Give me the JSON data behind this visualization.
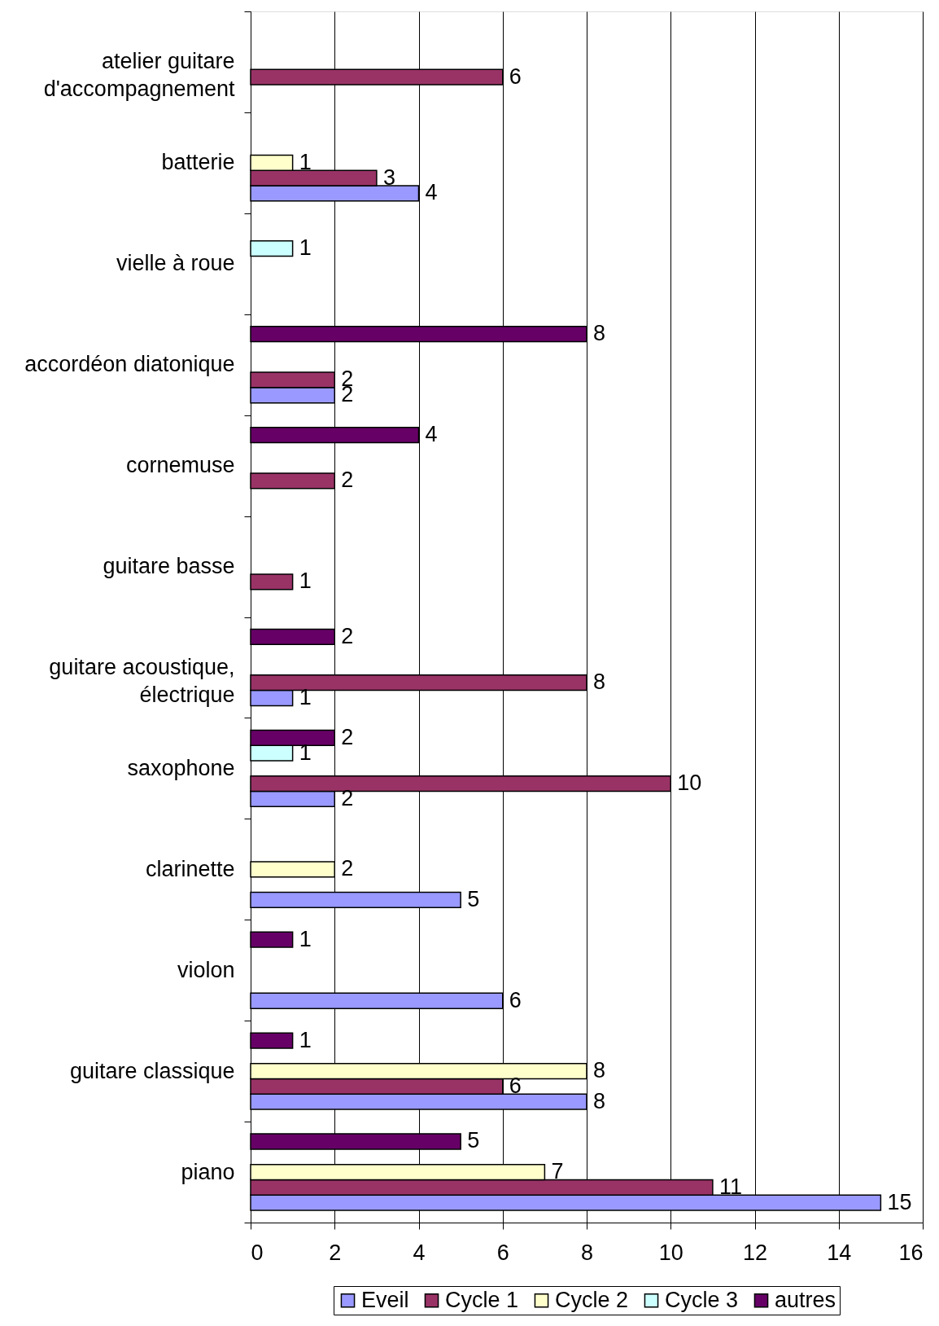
{
  "chart_data": {
    "type": "bar",
    "orientation": "horizontal",
    "categories": [
      "atelier guitare d'accompagnement",
      "batterie",
      "vielle à roue",
      "accordéon diatonique",
      "cornemuse",
      "guitare basse",
      "guitare acoustique, électrique",
      "saxophone",
      "clarinette",
      "violon",
      "guitare classique",
      "piano"
    ],
    "series": [
      {
        "name": "Eveil",
        "color": "#9999ff",
        "values": [
          null,
          4,
          null,
          2,
          null,
          null,
          1,
          2,
          5,
          6,
          8,
          15
        ]
      },
      {
        "name": "Cycle 1",
        "color": "#993366",
        "values": [
          6,
          3,
          null,
          2,
          2,
          1,
          8,
          10,
          null,
          null,
          6,
          11
        ]
      },
      {
        "name": "Cycle 2",
        "color": "#ffffcc",
        "values": [
          null,
          1,
          null,
          null,
          null,
          null,
          null,
          null,
          2,
          null,
          8,
          7
        ]
      },
      {
        "name": "Cycle 3",
        "color": "#ccffff",
        "values": [
          null,
          null,
          1,
          null,
          null,
          null,
          null,
          1,
          null,
          null,
          null,
          null
        ]
      },
      {
        "name": "autres",
        "color": "#660066",
        "values": [
          null,
          null,
          null,
          8,
          4,
          null,
          2,
          2,
          null,
          1,
          1,
          5
        ]
      }
    ],
    "xlim": [
      0,
      16
    ],
    "xticks": [
      0,
      2,
      4,
      6,
      8,
      10,
      12,
      14,
      16
    ],
    "grid": "x",
    "legend": "bottom",
    "data_labels": true
  }
}
